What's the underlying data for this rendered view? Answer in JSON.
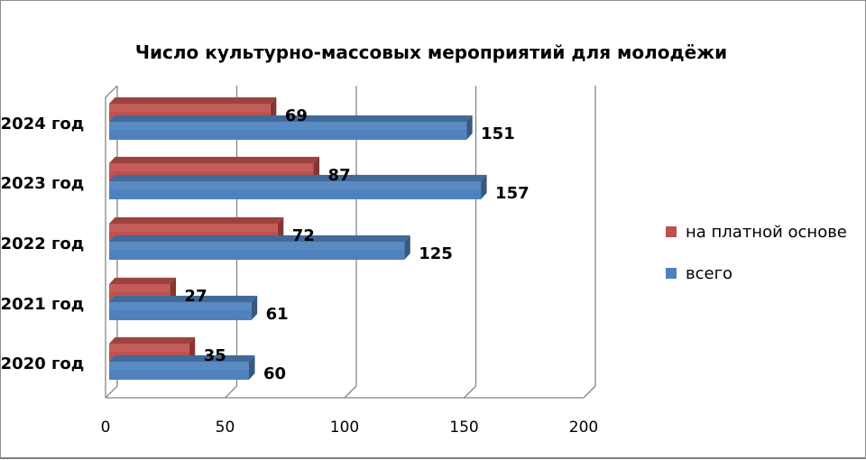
{
  "chart_data": {
    "type": "bar",
    "orientation": "horizontal",
    "three_d": true,
    "title": "Число культурно-массовых мероприятий  для молодёжи",
    "categories": [
      "2020 год",
      "2021 год",
      "2022 год",
      "2023 год",
      "2024 год"
    ],
    "series": [
      {
        "name": "на платной основе",
        "color": "#c0504d",
        "values": [
          35,
          27,
          72,
          87,
          69
        ]
      },
      {
        "name": "всего",
        "color": "#4f81bd",
        "values": [
          60,
          61,
          125,
          157,
          151
        ]
      }
    ],
    "xlim": [
      0,
      200
    ],
    "x_ticks": [
      "0",
      "50",
      "100",
      "150",
      "200"
    ],
    "grid": true,
    "legend_position": "right"
  }
}
